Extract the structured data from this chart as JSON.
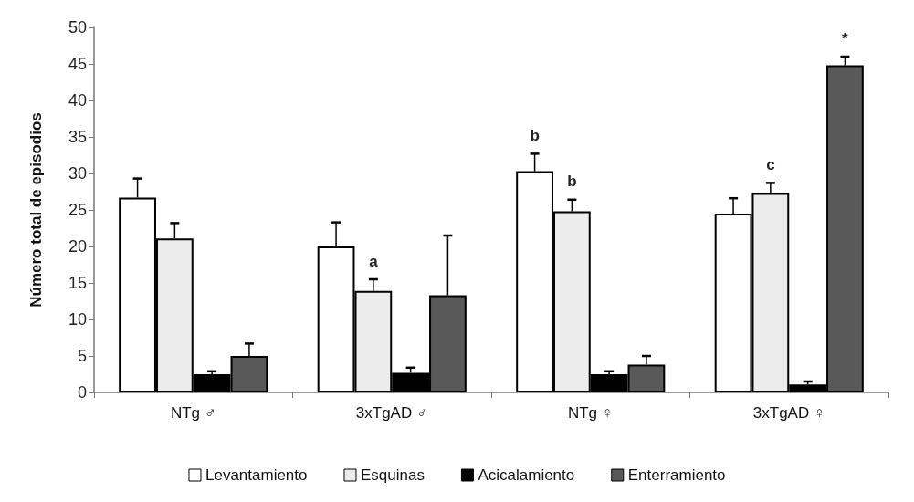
{
  "chart_data": {
    "type": "bar",
    "ylabel": "Número total de episodios",
    "categories": [
      "NTg ♂",
      "3xTgAD ♂",
      "NTg ♀",
      "3xTgAD ♀"
    ],
    "series": [
      {
        "name": "Levantamiento",
        "color": "#ffffff",
        "values": [
          26.7,
          20,
          30.3,
          24.5
        ],
        "errors": [
          [
            26.7,
            29.3
          ],
          [
            20,
            23.3
          ],
          [
            30.3,
            32.7
          ],
          [
            24.5,
            26.6
          ]
        ],
        "value_labels": [
          null,
          null,
          "b",
          null
        ]
      },
      {
        "name": "Esquinas",
        "color": "#ececec",
        "values": [
          21.1,
          13.9,
          24.8,
          27.3
        ],
        "errors": [
          [
            21.1,
            23.2
          ],
          [
            13.9,
            15.5
          ],
          [
            24.8,
            26.4
          ],
          [
            27.3,
            28.7
          ]
        ],
        "value_labels": [
          null,
          "a",
          "b",
          "c"
        ]
      },
      {
        "name": "Acicalamiento",
        "color": "#000000",
        "values": [
          2.5,
          2.7,
          2.5,
          1.1
        ],
        "errors": [
          [
            2.5,
            2.9
          ],
          [
            2.7,
            3.4
          ],
          [
            2.5,
            2.9
          ],
          [
            1.1,
            1.5
          ]
        ]
      },
      {
        "name": "Enterramiento",
        "color": "#595959",
        "values": [
          5,
          13.3,
          3.8,
          44.8
        ],
        "errors": [
          [
            5,
            6.7
          ],
          [
            13.3,
            21.5
          ],
          [
            3.8,
            5
          ],
          [
            44.8,
            46
          ]
        ],
        "value_labels": [
          null,
          null,
          null,
          "*"
        ]
      }
    ],
    "ylim": [
      0,
      50
    ],
    "yticks": [
      0,
      5,
      10,
      15,
      20,
      25,
      30,
      35,
      40,
      45,
      50
    ],
    "grid": false,
    "legend": "bottom"
  }
}
